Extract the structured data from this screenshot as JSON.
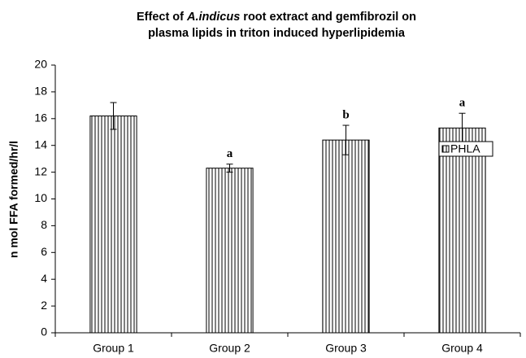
{
  "chart_data": {
    "type": "bar",
    "title_lines": [
      [
        "Effect of ",
        "A.indicus",
        " root extract and gemfibrozil on"
      ],
      [
        "plasma lipids in triton induced hyperlipidemia"
      ]
    ],
    "y_label": "n mol FFA formed/hr/l",
    "categories": [
      "Group 1",
      "Group 2",
      "Group 3",
      "Group 4"
    ],
    "series": [
      {
        "name": "PHLA",
        "color": "#000000",
        "values": [
          16.2,
          12.3,
          14.4,
          15.3
        ],
        "errors": [
          1.0,
          0.3,
          1.1,
          1.1
        ]
      }
    ],
    "annotations": [
      null,
      "a",
      "b",
      "a"
    ],
    "ylim": [
      0,
      20
    ],
    "yticks": [
      0,
      2,
      4,
      6,
      8,
      10,
      12,
      14,
      16,
      18,
      20
    ],
    "grid": false,
    "legend": "upper right"
  }
}
